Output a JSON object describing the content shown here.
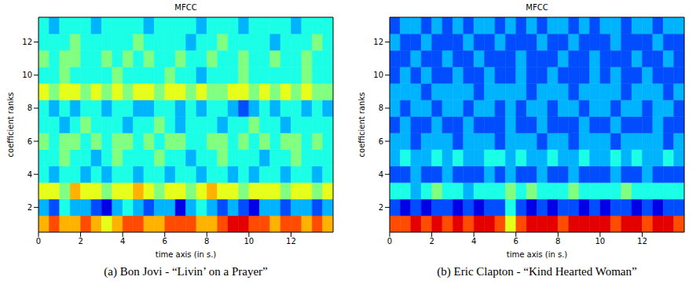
{
  "chart_data": [
    {
      "type": "heatmap",
      "title": "MFCC",
      "caption": "(a) Bon Jovi - “Livin’ on a Prayer”",
      "x_label": "time axis (in s.)",
      "y_label": "coefficient ranks",
      "xlim": [
        0,
        14
      ],
      "ylim": [
        0.5,
        13.5
      ],
      "xticks": [
        0,
        2,
        4,
        6,
        8,
        10,
        12
      ],
      "yticks": [
        2,
        4,
        6,
        8,
        10,
        12
      ],
      "clim": [
        0,
        10
      ],
      "x_edges": [
        0,
        0.5,
        1,
        1.5,
        2,
        2.5,
        3,
        3.5,
        4,
        4.5,
        5,
        5.5,
        6,
        6.5,
        7,
        7.5,
        8,
        8.5,
        9,
        9.5,
        10,
        10.5,
        11,
        11.5,
        12,
        12.5,
        13,
        13.5,
        14
      ],
      "y_edges": [
        0.5,
        1.5,
        2.5,
        3.5,
        4.5,
        5.5,
        6.5,
        7.5,
        8.5,
        9.5,
        10.5,
        11.5,
        12.5,
        13.5
      ],
      "cells": [
        [
          7,
          8,
          7,
          7,
          8,
          7,
          6,
          7,
          8,
          8,
          7,
          7,
          8,
          8,
          8,
          7,
          7,
          8,
          9,
          9,
          8,
          8,
          7,
          8,
          8,
          7,
          8,
          7
        ],
        [
          3,
          2,
          4,
          3,
          3,
          2,
          1,
          3,
          4,
          3,
          2,
          3,
          3,
          1,
          3,
          4,
          3,
          2,
          3,
          2,
          1,
          3,
          3,
          2,
          3,
          3,
          2,
          3
        ],
        [
          6,
          6,
          5,
          7,
          6,
          6,
          5,
          6,
          6,
          7,
          6,
          5,
          6,
          6,
          5,
          6,
          7,
          6,
          6,
          5,
          6,
          6,
          6,
          5,
          6,
          6,
          5,
          6
        ],
        [
          4,
          3,
          4,
          4,
          3,
          4,
          3,
          4,
          4,
          3,
          4,
          4,
          3,
          4,
          4,
          3,
          4,
          4,
          3,
          4,
          3,
          4,
          4,
          3,
          4,
          4,
          3,
          4
        ],
        [
          4,
          4,
          5,
          4,
          4,
          3,
          4,
          5,
          4,
          4,
          4,
          5,
          4,
          4,
          3,
          4,
          4,
          5,
          4,
          4,
          4,
          3,
          4,
          4,
          5,
          4,
          4,
          4
        ],
        [
          5,
          4,
          5,
          5,
          4,
          5,
          4,
          5,
          5,
          4,
          5,
          4,
          5,
          5,
          4,
          4,
          5,
          5,
          4,
          5,
          4,
          5,
          4,
          5,
          5,
          4,
          5,
          4
        ],
        [
          4,
          4,
          3,
          4,
          5,
          4,
          4,
          4,
          3,
          4,
          4,
          5,
          4,
          3,
          4,
          4,
          4,
          3,
          4,
          4,
          5,
          4,
          4,
          3,
          4,
          4,
          4,
          4
        ],
        [
          4,
          3,
          4,
          3,
          4,
          4,
          3,
          4,
          4,
          3,
          3,
          4,
          4,
          3,
          4,
          3,
          4,
          4,
          3,
          2,
          3,
          4,
          3,
          4,
          4,
          3,
          4,
          3
        ],
        [
          6,
          5,
          6,
          6,
          5,
          6,
          5,
          6,
          5,
          6,
          6,
          5,
          6,
          6,
          5,
          6,
          5,
          5,
          6,
          6,
          5,
          6,
          5,
          6,
          5,
          6,
          5,
          5
        ],
        [
          4,
          4,
          5,
          4,
          4,
          4,
          4,
          5,
          4,
          4,
          4,
          4,
          5,
          4,
          4,
          3,
          4,
          4,
          4,
          5,
          4,
          4,
          4,
          4,
          4,
          5,
          4,
          4
        ],
        [
          5,
          4,
          5,
          5,
          4,
          4,
          5,
          4,
          5,
          4,
          5,
          4,
          4,
          5,
          4,
          4,
          5,
          4,
          4,
          5,
          4,
          4,
          5,
          4,
          4,
          5,
          4,
          4
        ],
        [
          4,
          4,
          4,
          5,
          4,
          4,
          4,
          4,
          4,
          5,
          4,
          4,
          4,
          4,
          3,
          4,
          4,
          5,
          4,
          4,
          4,
          4,
          3,
          4,
          4,
          4,
          5,
          4
        ],
        [
          4,
          3,
          4,
          4,
          4,
          3,
          4,
          4,
          4,
          4,
          3,
          4,
          4,
          4,
          4,
          3,
          4,
          4,
          4,
          3,
          4,
          4,
          4,
          4,
          3,
          4,
          4,
          4
        ]
      ]
    },
    {
      "type": "heatmap",
      "title": "MFCC",
      "caption": "(b) Eric Clapton - “Kind Hearted Woman”",
      "x_label": "time axis (in s.)",
      "y_label": "coefficient ranks",
      "xlim": [
        0,
        14
      ],
      "ylim": [
        0.5,
        13.5
      ],
      "xticks": [
        0,
        2,
        4,
        6,
        8,
        10,
        12
      ],
      "yticks": [
        2,
        4,
        6,
        8,
        10,
        12
      ],
      "clim": [
        0,
        10
      ],
      "x_edges": [
        0,
        0.5,
        1,
        1.5,
        2,
        2.5,
        3,
        3.5,
        4,
        4.5,
        5,
        5.5,
        6,
        6.5,
        7,
        7.5,
        8,
        8.5,
        9,
        9.5,
        10,
        10.5,
        11,
        11.5,
        12,
        12.5,
        13,
        13.5,
        14
      ],
      "y_edges": [
        0.5,
        1.5,
        2.5,
        3.5,
        4.5,
        5.5,
        6.5,
        7.5,
        8.5,
        9.5,
        10.5,
        11.5,
        12.5,
        13.5
      ],
      "cells": [
        [
          8,
          8,
          9,
          8,
          9,
          8,
          9,
          8,
          9,
          9,
          8,
          6,
          8,
          9,
          9,
          9,
          8,
          9,
          9,
          9,
          9,
          8,
          9,
          9,
          8,
          9,
          9,
          8
        ],
        [
          2,
          1,
          2,
          1,
          2,
          2,
          1,
          2,
          1,
          2,
          2,
          4,
          2,
          1,
          2,
          1,
          2,
          2,
          1,
          2,
          1,
          2,
          2,
          1,
          2,
          1,
          2,
          2
        ],
        [
          4,
          4,
          3,
          4,
          5,
          4,
          4,
          3,
          4,
          4,
          4,
          5,
          4,
          5,
          4,
          4,
          4,
          5,
          4,
          4,
          4,
          4,
          5,
          4,
          4,
          4,
          4,
          4
        ],
        [
          2,
          2,
          3,
          2,
          2,
          3,
          2,
          2,
          2,
          3,
          2,
          3,
          2,
          2,
          3,
          2,
          2,
          3,
          2,
          2,
          2,
          3,
          2,
          2,
          3,
          2,
          2,
          2
        ],
        [
          3,
          4,
          3,
          3,
          4,
          3,
          4,
          3,
          3,
          4,
          4,
          3,
          4,
          3,
          3,
          4,
          3,
          3,
          4,
          3,
          3,
          4,
          3,
          4,
          3,
          3,
          4,
          3
        ],
        [
          3,
          3,
          2,
          3,
          3,
          3,
          2,
          3,
          3,
          3,
          2,
          3,
          3,
          3,
          2,
          3,
          3,
          2,
          3,
          3,
          3,
          2,
          3,
          3,
          3,
          3,
          2,
          3
        ],
        [
          2,
          3,
          2,
          2,
          3,
          2,
          2,
          3,
          2,
          2,
          2,
          3,
          2,
          2,
          3,
          2,
          2,
          2,
          3,
          2,
          2,
          3,
          2,
          2,
          2,
          3,
          2,
          2
        ],
        [
          3,
          2,
          3,
          3,
          2,
          3,
          3,
          2,
          3,
          3,
          2,
          3,
          2,
          3,
          3,
          2,
          3,
          3,
          2,
          3,
          3,
          2,
          3,
          3,
          2,
          3,
          3,
          2
        ],
        [
          3,
          3,
          3,
          2,
          3,
          3,
          3,
          3,
          2,
          3,
          3,
          3,
          3,
          2,
          3,
          3,
          3,
          2,
          3,
          3,
          3,
          3,
          2,
          3,
          3,
          3,
          2,
          3
        ],
        [
          2,
          3,
          2,
          3,
          2,
          2,
          3,
          2,
          2,
          3,
          2,
          2,
          3,
          2,
          2,
          3,
          2,
          2,
          2,
          3,
          2,
          3,
          2,
          2,
          3,
          2,
          2,
          2
        ],
        [
          2,
          2,
          3,
          2,
          2,
          3,
          2,
          2,
          3,
          2,
          2,
          2,
          3,
          2,
          2,
          2,
          3,
          2,
          2,
          3,
          2,
          2,
          2,
          3,
          2,
          2,
          3,
          2
        ],
        [
          3,
          2,
          2,
          3,
          2,
          2,
          2,
          3,
          2,
          2,
          3,
          2,
          2,
          2,
          3,
          2,
          2,
          3,
          2,
          2,
          2,
          3,
          2,
          2,
          2,
          3,
          2,
          2
        ],
        [
          2,
          3,
          3,
          2,
          3,
          2,
          3,
          2,
          3,
          3,
          2,
          3,
          2,
          3,
          2,
          3,
          3,
          2,
          3,
          2,
          3,
          3,
          2,
          3,
          3,
          2,
          3,
          3
        ]
      ]
    }
  ]
}
